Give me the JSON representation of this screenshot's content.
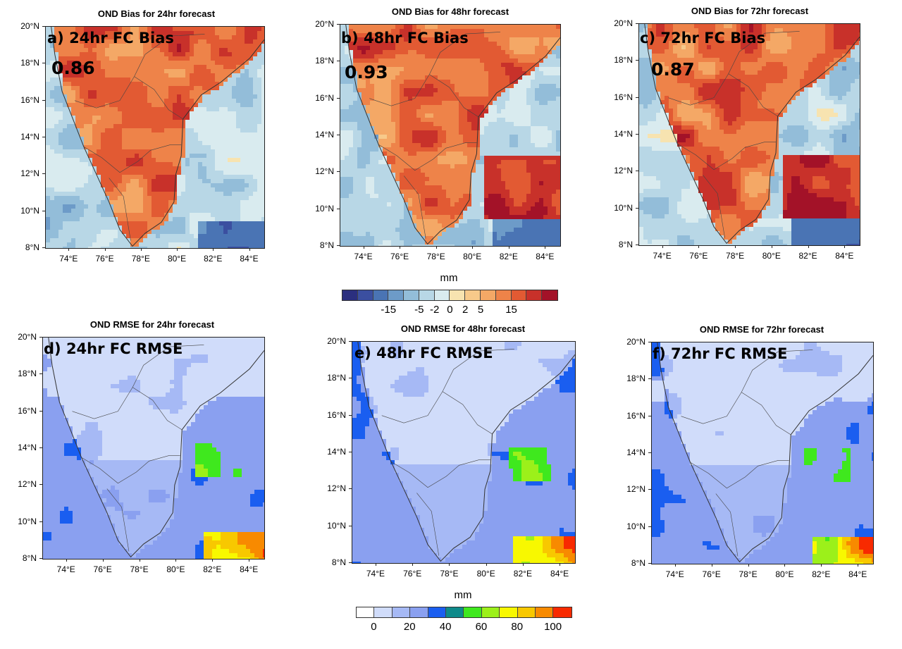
{
  "bias_panels": [
    {
      "title": "OND Bias for 24hr forecast",
      "label": "a) 24hr FC Bias",
      "score": "0.86"
    },
    {
      "title": "OND Bias for 48hr forecast",
      "label": "b) 48hr FC Bias",
      "score": "0.93"
    },
    {
      "title": "OND Bias for 72hr forecast",
      "label": "c) 72hr FC Bias",
      "score": "0.87"
    }
  ],
  "rmse_panels": [
    {
      "title": "OND RMSE for 24hr forecast",
      "label": "d) 24hr FC RMSE"
    },
    {
      "title": "OND RMSE for 48hr forecast",
      "label": "e) 48hr FC RMSE"
    },
    {
      "title": "OND RMSE for 72hr forecast",
      "label": "f) 72hr FC RMSE"
    }
  ],
  "axes": {
    "lat_labels": [
      "20°N",
      "18°N",
      "16°N",
      "14°N",
      "12°N",
      "10°N",
      "8°N"
    ],
    "lon_labels": [
      "74°E",
      "76°E",
      "78°E",
      "80°E",
      "82°E",
      "84°E"
    ],
    "lat_range": [
      8,
      20
    ],
    "lon_range": [
      72.7,
      84.8
    ]
  },
  "bias_colorbar": {
    "unit": "mm",
    "labels": [
      "-15",
      "-5",
      "-2",
      "0",
      "2",
      "5",
      "15"
    ],
    "colors": [
      "#2b2f7f",
      "#3b4fa0",
      "#4a74b4",
      "#6d9bc8",
      "#93bdd9",
      "#b8d7e6",
      "#d9ebef",
      "#f7e3b0",
      "#f7c98a",
      "#f4a866",
      "#ee8349",
      "#e25a33",
      "#c8312a",
      "#a31228"
    ]
  },
  "rmse_colorbar": {
    "unit": "mm",
    "labels": [
      "0",
      "20",
      "40",
      "60",
      "80",
      "100"
    ],
    "colors": [
      "#ffffff",
      "#d0dcfa",
      "#a6b9f5",
      "#8aa0f0",
      "#1a5ef0",
      "#0e8a8a",
      "#3fe81e",
      "#9cf01a",
      "#f8f800",
      "#f8c800",
      "#f88a00",
      "#f82a00"
    ]
  }
}
